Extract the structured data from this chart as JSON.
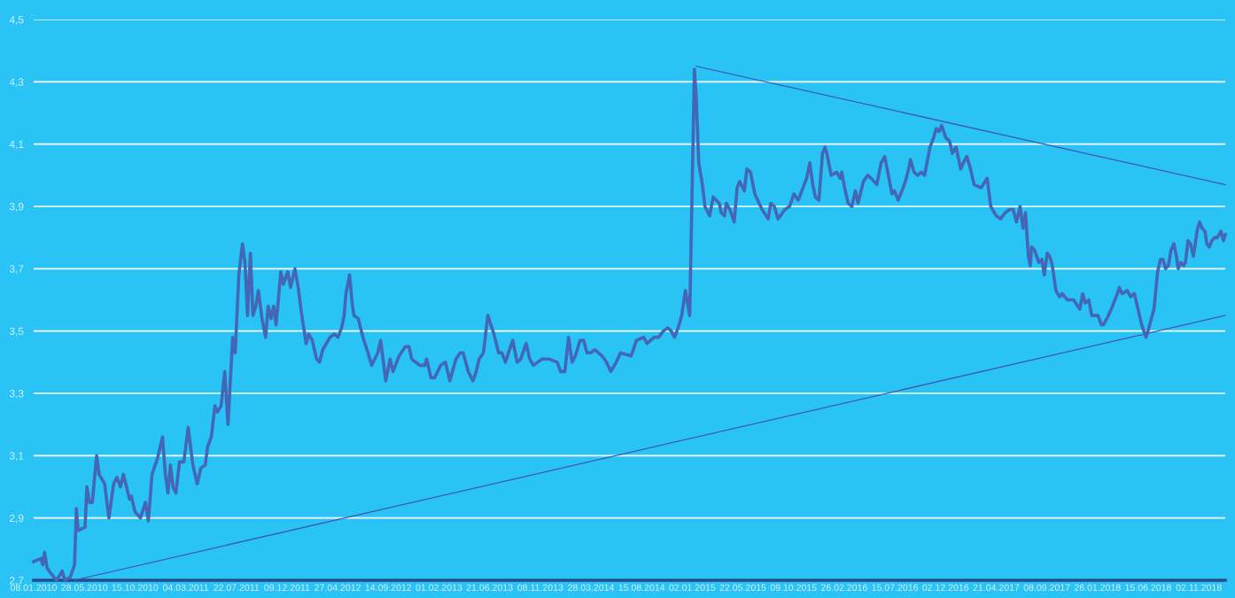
{
  "chart_data": {
    "type": "line",
    "grid": "y",
    "line_style": "solid",
    "ylim": [
      2.7,
      4.5
    ],
    "yticks": [
      {
        "value": 2.7,
        "label": "2,7"
      },
      {
        "value": 2.9,
        "label": "2,9"
      },
      {
        "value": 3.1,
        "label": "3,1"
      },
      {
        "value": 3.3,
        "label": "3,3"
      },
      {
        "value": 3.5,
        "label": "3,5"
      },
      {
        "value": 3.7,
        "label": "3,7"
      },
      {
        "value": 3.9,
        "label": "3,9"
      },
      {
        "value": 4.1,
        "label": "4,1"
      },
      {
        "value": 4.3,
        "label": "4,3"
      },
      {
        "value": 4.5,
        "label": "4,5"
      }
    ],
    "xlim": [
      "2010-01-08",
      "2019-01-14"
    ],
    "xticks": [
      {
        "value": "2010-01-08",
        "label": "08.01.2010"
      },
      {
        "value": "2010-05-28",
        "label": "28.05.2010"
      },
      {
        "value": "2010-10-15",
        "label": "15.10.2010"
      },
      {
        "value": "2011-03-04",
        "label": "04.03.2011"
      },
      {
        "value": "2011-07-22",
        "label": "22.07.2011"
      },
      {
        "value": "2011-12-09",
        "label": "09.12.2011"
      },
      {
        "value": "2012-04-27",
        "label": "27.04.2012"
      },
      {
        "value": "2012-09-14",
        "label": "14.09.2012"
      },
      {
        "value": "2013-02-01",
        "label": "01.02.2013"
      },
      {
        "value": "2013-06-21",
        "label": "21.06.2013"
      },
      {
        "value": "2013-11-08",
        "label": "08.11.2013"
      },
      {
        "value": "2014-03-28",
        "label": "28.03.2014"
      },
      {
        "value": "2014-08-15",
        "label": "15.08.2014"
      },
      {
        "value": "2015-01-02",
        "label": "02.01.2015"
      },
      {
        "value": "2015-05-22",
        "label": "22.05.2015"
      },
      {
        "value": "2015-10-09",
        "label": "09.10.2015"
      },
      {
        "value": "2016-02-26",
        "label": "26.02.2016"
      },
      {
        "value": "2016-07-15",
        "label": "15.07.2016"
      },
      {
        "value": "2016-12-02",
        "label": "02.12.2016"
      },
      {
        "value": "2017-04-21",
        "label": "21.04.2017"
      },
      {
        "value": "2017-09-08",
        "label": "08.09.2017"
      },
      {
        "value": "2018-01-26",
        "label": "26.01.2018"
      },
      {
        "value": "2018-06-15",
        "label": "15.06.2018"
      },
      {
        "value": "2018-11-02",
        "label": "02.11.2018"
      }
    ],
    "x": [
      "2010-01-08",
      "2010-01-28",
      "2010-02-02",
      "2010-02-07",
      "2010-02-14",
      "2010-02-26",
      "2010-03-12",
      "2010-03-23",
      "2010-03-28",
      "2010-04-04",
      "2010-04-19",
      "2010-05-01",
      "2010-05-06",
      "2010-05-11",
      "2010-05-30",
      "2010-06-04",
      "2010-06-11",
      "2010-06-19",
      "2010-07-01",
      "2010-07-08",
      "2010-07-23",
      "2010-08-04",
      "2010-08-17",
      "2010-08-26",
      "2010-09-05",
      "2010-09-13",
      "2010-09-30",
      "2010-10-05",
      "2010-10-15",
      "2010-10-30",
      "2010-11-13",
      "2010-11-21",
      "2010-12-01",
      "2010-12-16",
      "2010-12-30",
      "2011-01-07",
      "2011-01-14",
      "2011-01-21",
      "2011-01-28",
      "2011-02-05",
      "2011-02-15",
      "2011-02-27",
      "2011-03-11",
      "2011-03-24",
      "2011-04-05",
      "2011-04-15",
      "2011-04-27",
      "2011-05-04",
      "2011-05-14",
      "2011-05-24",
      "2011-05-31",
      "2011-06-10",
      "2011-06-20",
      "2011-06-29",
      "2011-07-12",
      "2011-07-19",
      "2011-07-29",
      "2011-08-08",
      "2011-08-15",
      "2011-08-22",
      "2011-08-30",
      "2011-09-06",
      "2011-09-14",
      "2011-09-21",
      "2011-10-01",
      "2011-10-11",
      "2011-10-18",
      "2011-10-26",
      "2011-11-02",
      "2011-11-09",
      "2011-11-22",
      "2011-11-29",
      "2011-12-11",
      "2011-12-19",
      "2011-12-31",
      "2012-01-09",
      "2012-01-19",
      "2012-01-31",
      "2012-02-07",
      "2012-02-17",
      "2012-02-29",
      "2012-03-08",
      "2012-03-17",
      "2012-04-06",
      "2012-04-18",
      "2012-04-28",
      "2012-05-08",
      "2012-05-15",
      "2012-05-20",
      "2012-05-30",
      "2012-06-06",
      "2012-06-11",
      "2012-06-23",
      "2012-07-06",
      "2012-07-20",
      "2012-07-30",
      "2012-08-16",
      "2012-08-24",
      "2012-09-07",
      "2012-09-19",
      "2012-09-27",
      "2012-10-14",
      "2012-10-31",
      "2012-11-10",
      "2012-11-18",
      "2012-12-10",
      "2012-12-24",
      "2012-12-29",
      "2013-01-10",
      "2013-01-20",
      "2013-02-06",
      "2013-02-19",
      "2013-03-03",
      "2013-03-20",
      "2013-04-01",
      "2013-04-09",
      "2013-04-23",
      "2013-05-06",
      "2013-05-15",
      "2013-05-23",
      "2013-06-04",
      "2013-06-16",
      "2013-07-03",
      "2013-07-16",
      "2013-07-25",
      "2013-08-04",
      "2013-08-12",
      "2013-08-24",
      "2013-09-05",
      "2013-09-15",
      "2013-09-30",
      "2013-10-10",
      "2013-10-20",
      "2013-11-13",
      "2013-12-03",
      "2013-12-25",
      "2014-01-03",
      "2014-01-15",
      "2014-01-25",
      "2014-02-04",
      "2014-02-13",
      "2014-02-26",
      "2014-03-08",
      "2014-03-17",
      "2014-03-27",
      "2014-04-08",
      "2014-04-28",
      "2014-05-10",
      "2014-05-22",
      "2014-06-06",
      "2014-06-18",
      "2014-07-17",
      "2014-08-01",
      "2014-08-21",
      "2014-08-30",
      "2014-09-19",
      "2014-10-01",
      "2014-10-14",
      "2014-10-26",
      "2014-11-05",
      "2014-11-14",
      "2014-11-24",
      "2014-12-04",
      "2014-12-14",
      "2014-12-26",
      "2015-01-08",
      "2015-01-13",
      "2015-01-20",
      "2015-01-30",
      "2015-02-06",
      "2015-02-19",
      "2015-03-01",
      "2015-03-18",
      "2015-03-23",
      "2015-04-01",
      "2015-04-06",
      "2015-04-16",
      "2015-04-28",
      "2015-05-06",
      "2015-05-13",
      "2015-05-26",
      "2015-06-02",
      "2015-06-12",
      "2015-06-24",
      "2015-07-14",
      "2015-07-31",
      "2015-08-07",
      "2015-08-17",
      "2015-08-27",
      "2015-09-15",
      "2015-09-28",
      "2015-10-10",
      "2015-10-22",
      "2015-11-01",
      "2015-11-14",
      "2015-11-23",
      "2015-12-01",
      "2015-12-08",
      "2015-12-18",
      "2015-12-28",
      "2016-01-04",
      "2016-01-09",
      "2016-01-21",
      "2016-02-05",
      "2016-02-15",
      "2016-02-19",
      "2016-02-27",
      "2016-03-08",
      "2016-03-18",
      "2016-03-28",
      "2016-04-04",
      "2016-04-19",
      "2016-05-01",
      "2016-05-11",
      "2016-05-26",
      "2016-06-07",
      "2016-06-17",
      "2016-06-27",
      "2016-07-07",
      "2016-07-14",
      "2016-07-24",
      "2016-07-31",
      "2016-08-13",
      "2016-08-22",
      "2016-08-27",
      "2016-09-06",
      "2016-09-16",
      "2016-09-26",
      "2016-10-05",
      "2016-10-20",
      "2016-10-30",
      "2016-11-06",
      "2016-11-14",
      "2016-11-21",
      "2016-12-03",
      "2016-12-13",
      "2016-12-21",
      "2016-12-31",
      "2017-01-13",
      "2017-01-20",
      "2017-01-30",
      "2017-02-09",
      "2017-02-19",
      "2017-03-10",
      "2017-03-27",
      "2017-04-06",
      "2017-04-21",
      "2017-05-03",
      "2017-05-16",
      "2017-05-28",
      "2017-06-07",
      "2017-06-16",
      "2017-06-26",
      "2017-07-04",
      "2017-07-11",
      "2017-07-19",
      "2017-07-24",
      "2017-07-28",
      "2017-08-05",
      "2017-08-17",
      "2017-08-25",
      "2017-09-01",
      "2017-09-09",
      "2017-09-16",
      "2017-09-23",
      "2017-10-03",
      "2017-10-13",
      "2017-10-20",
      "2017-11-04",
      "2017-11-21",
      "2017-12-08",
      "2017-12-16",
      "2017-12-23",
      "2018-01-02",
      "2018-01-10",
      "2018-01-17",
      "2018-01-27",
      "2018-02-06",
      "2018-02-11",
      "2018-02-21",
      "2018-03-05",
      "2018-03-15",
      "2018-03-22",
      "2018-03-27",
      "2018-04-04",
      "2018-04-18",
      "2018-04-28",
      "2018-05-08",
      "2018-05-20",
      "2018-05-28",
      "2018-06-09",
      "2018-06-17",
      "2018-06-26",
      "2018-07-01",
      "2018-07-11",
      "2018-07-19",
      "2018-07-26",
      "2018-08-02",
      "2018-08-10",
      "2018-08-17",
      "2018-08-25",
      "2018-09-01",
      "2018-09-06",
      "2018-09-13",
      "2018-09-21",
      "2018-09-26",
      "2018-10-03",
      "2018-10-10",
      "2018-10-18",
      "2018-10-28",
      "2018-11-04",
      "2018-11-11",
      "2018-11-19",
      "2018-11-24",
      "2018-12-01",
      "2018-12-08",
      "2018-12-16",
      "2018-12-23",
      "2019-01-02",
      "2019-01-09",
      "2019-01-14"
    ],
    "series": [
      {
        "color": "#4367b6",
        "values": [
          2.76,
          2.77,
          2.75,
          2.79,
          2.74,
          2.72,
          2.7,
          2.72,
          2.73,
          2.7,
          2.71,
          2.75,
          2.93,
          2.86,
          2.87,
          3.0,
          2.95,
          2.95,
          3.1,
          3.04,
          3.01,
          2.9,
          3.01,
          3.03,
          3.0,
          3.04,
          2.96,
          2.97,
          2.92,
          2.9,
          2.95,
          2.89,
          3.04,
          3.09,
          3.16,
          3.04,
          2.98,
          3.07,
          3.0,
          2.98,
          3.08,
          3.08,
          3.19,
          3.07,
          3.01,
          3.06,
          3.07,
          3.13,
          3.16,
          3.26,
          3.24,
          3.26,
          3.37,
          3.2,
          3.48,
          3.43,
          3.68,
          3.78,
          3.72,
          3.55,
          3.75,
          3.55,
          3.58,
          3.63,
          3.54,
          3.48,
          3.58,
          3.54,
          3.58,
          3.52,
          3.69,
          3.65,
          3.69,
          3.64,
          3.7,
          3.64,
          3.55,
          3.46,
          3.49,
          3.47,
          3.41,
          3.4,
          3.44,
          3.48,
          3.49,
          3.48,
          3.51,
          3.55,
          3.62,
          3.68,
          3.59,
          3.55,
          3.54,
          3.48,
          3.43,
          3.39,
          3.43,
          3.47,
          3.34,
          3.41,
          3.37,
          3.42,
          3.45,
          3.45,
          3.41,
          3.39,
          3.39,
          3.41,
          3.35,
          3.35,
          3.39,
          3.4,
          3.34,
          3.41,
          3.43,
          3.43,
          3.37,
          3.34,
          3.37,
          3.41,
          3.43,
          3.55,
          3.49,
          3.43,
          3.43,
          3.4,
          3.43,
          3.47,
          3.4,
          3.41,
          3.46,
          3.41,
          3.39,
          3.41,
          3.41,
          3.4,
          3.37,
          3.37,
          3.48,
          3.4,
          3.42,
          3.47,
          3.47,
          3.43,
          3.43,
          3.44,
          3.42,
          3.4,
          3.37,
          3.4,
          3.43,
          3.42,
          3.47,
          3.48,
          3.46,
          3.48,
          3.48,
          3.5,
          3.51,
          3.5,
          3.48,
          3.51,
          3.55,
          3.63,
          3.55,
          4.34,
          4.25,
          4.04,
          3.97,
          3.9,
          3.87,
          3.93,
          3.91,
          3.88,
          3.87,
          3.91,
          3.89,
          3.85,
          3.96,
          3.98,
          3.95,
          4.02,
          4.01,
          3.94,
          3.89,
          3.86,
          3.91,
          3.9,
          3.86,
          3.89,
          3.9,
          3.94,
          3.92,
          3.95,
          3.99,
          4.04,
          3.97,
          3.93,
          3.92,
          4.07,
          4.09,
          4.07,
          4.0,
          4.01,
          3.99,
          4.01,
          3.96,
          3.91,
          3.9,
          3.95,
          3.91,
          3.98,
          4.0,
          3.99,
          3.97,
          4.04,
          4.06,
          4.0,
          3.94,
          3.95,
          3.92,
          3.94,
          3.98,
          4.02,
          4.05,
          4.01,
          4.0,
          4.01,
          4.0,
          4.09,
          4.12,
          4.15,
          4.14,
          4.16,
          4.12,
          4.11,
          4.07,
          4.09,
          4.02,
          4.04,
          4.06,
          4.02,
          3.97,
          3.96,
          3.99,
          3.9,
          3.87,
          3.86,
          3.88,
          3.89,
          3.89,
          3.85,
          3.9,
          3.83,
          3.88,
          3.74,
          3.71,
          3.77,
          3.76,
          3.72,
          3.73,
          3.68,
          3.75,
          3.74,
          3.71,
          3.63,
          3.61,
          3.62,
          3.6,
          3.6,
          3.57,
          3.62,
          3.59,
          3.6,
          3.55,
          3.55,
          3.55,
          3.52,
          3.52,
          3.54,
          3.57,
          3.6,
          3.62,
          3.64,
          3.62,
          3.63,
          3.61,
          3.62,
          3.56,
          3.52,
          3.48,
          3.51,
          3.55,
          3.57,
          3.69,
          3.73,
          3.73,
          3.7,
          3.71,
          3.76,
          3.78,
          3.74,
          3.7,
          3.72,
          3.71,
          3.72,
          3.79,
          3.78,
          3.74,
          3.82,
          3.85,
          3.83,
          3.82,
          3.78,
          3.77,
          3.79,
          3.8,
          3.8,
          3.82,
          3.79,
          3.81
        ]
      },
      {
        "type": "line",
        "color": "#3f5aad",
        "x": [
          "2015-01-13",
          "2019-01-14"
        ],
        "values": [
          4.35,
          3.97
        ]
      },
      {
        "type": "line",
        "color": "#3f5aad",
        "x": [
          "2010-04-29",
          "2019-01-14"
        ],
        "values": [
          2.7,
          3.55
        ]
      }
    ]
  }
}
